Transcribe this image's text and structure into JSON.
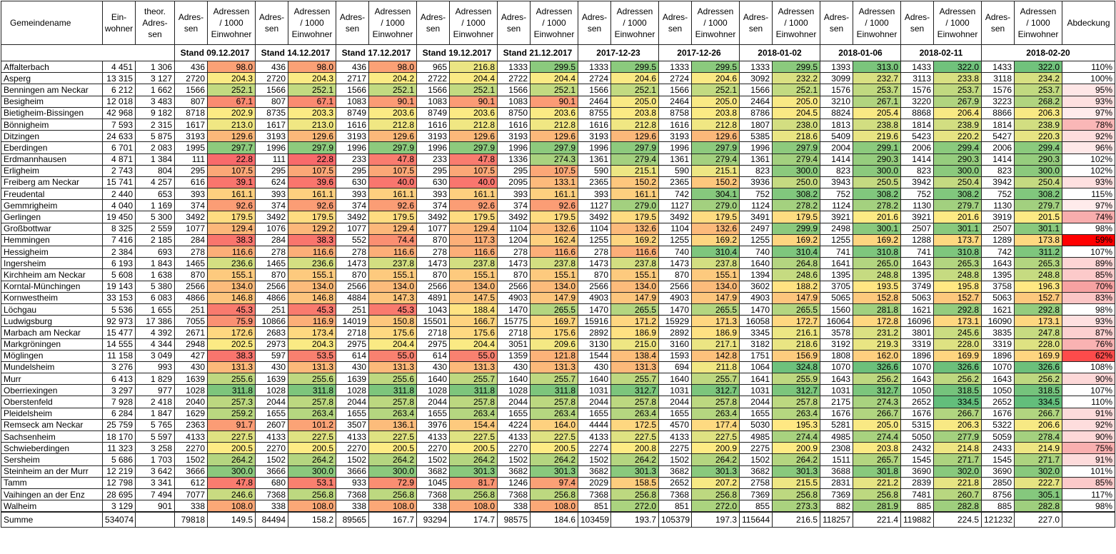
{
  "header": {
    "name": "Gemeindename",
    "einwohner": "Ein-\nwohner",
    "theor": "theor.\nAdres-\nsen",
    "adressen": "Adres-\nsen",
    "rate": "Adressen\n/ 1000\nEinwohner",
    "abdeckung": "Abdeckung"
  },
  "stands": [
    "Stand 09.12.2017",
    "Stand 14.12.2017",
    "Stand 17.12.2017",
    "Stand 19.12.2017",
    "Stand 21.12.2017",
    "2017-12-23",
    "2017-12-26",
    "2018-01-02",
    "2018-01-06",
    "2018-02-11",
    "2018-02-20"
  ],
  "rows": [
    [
      "Affalterbach",
      "4 451",
      "1 306",
      "436",
      "98.0",
      "436",
      "98.0",
      "436",
      "98.0",
      "965",
      "216.8",
      "1333",
      "299.5",
      "1333",
      "299.5",
      "1333",
      "299.5",
      "1333",
      "299.5",
      "1393",
      "313.0",
      "1433",
      "322.0",
      "1433",
      "322.0",
      "110%"
    ],
    [
      "Asperg",
      "13 315",
      "3 127",
      "2720",
      "204.3",
      "2720",
      "204.3",
      "2717",
      "204.2",
      "2722",
      "204.4",
      "2722",
      "204.4",
      "2724",
      "204.6",
      "2724",
      "204.6",
      "3092",
      "232.2",
      "3099",
      "232.7",
      "3113",
      "233.8",
      "3118",
      "234.2",
      "100%"
    ],
    [
      "Benningen am Neckar",
      "6 212",
      "1 662",
      "1566",
      "252.1",
      "1566",
      "252.1",
      "1566",
      "252.1",
      "1566",
      "252.1",
      "1566",
      "252.1",
      "1566",
      "252.1",
      "1566",
      "252.1",
      "1566",
      "252.1",
      "1576",
      "253.7",
      "1576",
      "253.7",
      "1576",
      "253.7",
      "95%"
    ],
    [
      "Besigheim",
      "12 018",
      "3 483",
      "807",
      "67.1",
      "807",
      "67.1",
      "1083",
      "90.1",
      "1083",
      "90.1",
      "1083",
      "90.1",
      "2464",
      "205.0",
      "2464",
      "205.0",
      "2464",
      "205.0",
      "3210",
      "267.1",
      "3220",
      "267.9",
      "3223",
      "268.2",
      "93%"
    ],
    [
      "Bietigheim-Bissingen",
      "42 968",
      "9 182",
      "8718",
      "202.9",
      "8735",
      "203.3",
      "8749",
      "203.6",
      "8749",
      "203.6",
      "8750",
      "203.6",
      "8755",
      "203.8",
      "8758",
      "203.8",
      "8786",
      "204.5",
      "8824",
      "205.4",
      "8868",
      "206.4",
      "8866",
      "206.3",
      "97%"
    ],
    [
      "Bönnigheim",
      "7 593",
      "2 315",
      "1617",
      "213.0",
      "1617",
      "213.0",
      "1616",
      "212.8",
      "1616",
      "212.8",
      "1616",
      "212.8",
      "1616",
      "212.8",
      "1616",
      "212.8",
      "1807",
      "238.0",
      "1813",
      "238.8",
      "1814",
      "238.9",
      "1814",
      "238.9",
      "78%"
    ],
    [
      "Ditzingen",
      "24 633",
      "5 875",
      "3193",
      "129.6",
      "3193",
      "129.6",
      "3193",
      "129.6",
      "3193",
      "129.6",
      "3193",
      "129.6",
      "3193",
      "129.6",
      "3193",
      "129.6",
      "5385",
      "218.6",
      "5409",
      "219.6",
      "5423",
      "220.2",
      "5427",
      "220.3",
      "92%"
    ],
    [
      "Eberdingen",
      "6 701",
      "2 083",
      "1995",
      "297.7",
      "1996",
      "297.9",
      "1996",
      "297.9",
      "1996",
      "297.9",
      "1996",
      "297.9",
      "1996",
      "297.9",
      "1996",
      "297.9",
      "1996",
      "297.9",
      "2004",
      "299.1",
      "2006",
      "299.4",
      "2006",
      "299.4",
      "96%"
    ],
    [
      "Erdmannhausen",
      "4 871",
      "1 384",
      "111",
      "22.8",
      "111",
      "22.8",
      "233",
      "47.8",
      "233",
      "47.8",
      "1336",
      "274.3",
      "1361",
      "279.4",
      "1361",
      "279.4",
      "1361",
      "279.4",
      "1414",
      "290.3",
      "1414",
      "290.3",
      "1414",
      "290.3",
      "102%"
    ],
    [
      "Erligheim",
      "2 743",
      "804",
      "295",
      "107.5",
      "295",
      "107.5",
      "295",
      "107.5",
      "295",
      "107.5",
      "295",
      "107.5",
      "590",
      "215.1",
      "590",
      "215.1",
      "823",
      "300.0",
      "823",
      "300.0",
      "823",
      "300.0",
      "823",
      "300.0",
      "102%"
    ],
    [
      "Freiberg am Neckar",
      "15 741",
      "4 257",
      "616",
      "39.1",
      "624",
      "39.6",
      "630",
      "40.0",
      "630",
      "40.0",
      "2095",
      "133.1",
      "2365",
      "150.2",
      "2365",
      "150.2",
      "3936",
      "250.0",
      "3943",
      "250.5",
      "3942",
      "250.4",
      "3942",
      "250.4",
      "93%"
    ],
    [
      "Freudental",
      "2 440",
      "653",
      "393",
      "161.1",
      "393",
      "161.1",
      "393",
      "161.1",
      "393",
      "161.1",
      "393",
      "161.1",
      "393",
      "161.1",
      "742",
      "304.1",
      "752",
      "308.2",
      "752",
      "308.2",
      "752",
      "308.2",
      "752",
      "308.2",
      "115%"
    ],
    [
      "Gemmrigheim",
      "4 040",
      "1 169",
      "374",
      "92.6",
      "374",
      "92.6",
      "374",
      "92.6",
      "374",
      "92.6",
      "374",
      "92.6",
      "1127",
      "279.0",
      "1127",
      "279.0",
      "1124",
      "278.2",
      "1124",
      "278.2",
      "1130",
      "279.7",
      "1130",
      "279.7",
      "97%"
    ],
    [
      "Gerlingen",
      "19 450",
      "5 300",
      "3492",
      "179.5",
      "3492",
      "179.5",
      "3492",
      "179.5",
      "3492",
      "179.5",
      "3492",
      "179.5",
      "3492",
      "179.5",
      "3492",
      "179.5",
      "3491",
      "179.5",
      "3921",
      "201.6",
      "3921",
      "201.6",
      "3919",
      "201.5",
      "74%"
    ],
    [
      "Großbottwar",
      "8 325",
      "2 559",
      "1077",
      "129.4",
      "1076",
      "129.2",
      "1077",
      "129.4",
      "1077",
      "129.4",
      "1104",
      "132.6",
      "1104",
      "132.6",
      "1104",
      "132.6",
      "2497",
      "299.9",
      "2498",
      "300.1",
      "2507",
      "301.1",
      "2507",
      "301.1",
      "98%"
    ],
    [
      "Hemmingen",
      "7 416",
      "2 185",
      "284",
      "38.3",
      "284",
      "38.3",
      "552",
      "74.4",
      "870",
      "117.3",
      "1204",
      "162.4",
      "1255",
      "169.2",
      "1255",
      "169.2",
      "1255",
      "169.2",
      "1255",
      "169.2",
      "1288",
      "173.7",
      "1289",
      "173.8",
      "59%"
    ],
    [
      "Hessigheim",
      "2 384",
      "693",
      "278",
      "116.6",
      "278",
      "116.6",
      "278",
      "116.6",
      "278",
      "116.6",
      "278",
      "116.6",
      "278",
      "116.6",
      "740",
      "310.4",
      "740",
      "310.4",
      "741",
      "310.8",
      "741",
      "310.8",
      "742",
      "311.2",
      "107%"
    ],
    [
      "Ingersheim",
      "6 193",
      "1 843",
      "1465",
      "236.6",
      "1465",
      "236.6",
      "1473",
      "237.8",
      "1473",
      "237.8",
      "1473",
      "237.8",
      "1473",
      "237.8",
      "1473",
      "237.8",
      "1640",
      "264.8",
      "1641",
      "265.0",
      "1643",
      "265.3",
      "1643",
      "265.3",
      "89%"
    ],
    [
      "Kirchheim am Neckar",
      "5 608",
      "1 638",
      "870",
      "155.1",
      "870",
      "155.1",
      "870",
      "155.1",
      "870",
      "155.1",
      "870",
      "155.1",
      "870",
      "155.1",
      "870",
      "155.1",
      "1394",
      "248.6",
      "1395",
      "248.8",
      "1395",
      "248.8",
      "1395",
      "248.8",
      "85%"
    ],
    [
      "Korntal-Münchingen",
      "19 143",
      "5 380",
      "2566",
      "134.0",
      "2566",
      "134.0",
      "2566",
      "134.0",
      "2566",
      "134.0",
      "2566",
      "134.0",
      "2566",
      "134.0",
      "2566",
      "134.0",
      "3602",
      "188.2",
      "3705",
      "193.5",
      "3749",
      "195.8",
      "3758",
      "196.3",
      "70%"
    ],
    [
      "Kornwestheim",
      "33 153",
      "6 083",
      "4866",
      "146.8",
      "4866",
      "146.8",
      "4884",
      "147.3",
      "4891",
      "147.5",
      "4903",
      "147.9",
      "4903",
      "147.9",
      "4903",
      "147.9",
      "4903",
      "147.9",
      "5065",
      "152.8",
      "5063",
      "152.7",
      "5063",
      "152.7",
      "83%"
    ],
    [
      "Löchgau",
      "5 536",
      "1 655",
      "251",
      "45.3",
      "251",
      "45.3",
      "251",
      "45.3",
      "1043",
      "188.4",
      "1470",
      "265.5",
      "1470",
      "265.5",
      "1470",
      "265.5",
      "1470",
      "265.5",
      "1560",
      "281.8",
      "1621",
      "292.8",
      "1621",
      "292.8",
      "98%"
    ],
    [
      "Ludwigsburg",
      "92 973",
      "17 386",
      "7055",
      "75.9",
      "10866",
      "116.9",
      "14019",
      "150.8",
      "15501",
      "166.7",
      "15775",
      "169.7",
      "15916",
      "171.2",
      "15929",
      "171.3",
      "16058",
      "172.7",
      "16064",
      "172.8",
      "16096",
      "173.1",
      "16090",
      "173.1",
      "93%"
    ],
    [
      "Marbach am Neckar",
      "15 477",
      "4 392",
      "2671",
      "172.6",
      "2683",
      "173.4",
      "2718",
      "175.6",
      "2718",
      "175.6",
      "2718",
      "175.6",
      "2892",
      "186.9",
      "2892",
      "186.9",
      "3345",
      "216.1",
      "3578",
      "231.2",
      "3801",
      "245.6",
      "3835",
      "247.8",
      "87%"
    ],
    [
      "Markgröningen",
      "14 555",
      "4 344",
      "2948",
      "202.5",
      "2973",
      "204.3",
      "2975",
      "204.4",
      "2975",
      "204.4",
      "3051",
      "209.6",
      "3130",
      "215.0",
      "3160",
      "217.1",
      "3182",
      "218.6",
      "3192",
      "219.3",
      "3319",
      "228.0",
      "3319",
      "228.0",
      "76%"
    ],
    [
      "Möglingen",
      "11 158",
      "3 049",
      "427",
      "38.3",
      "597",
      "53.5",
      "614",
      "55.0",
      "614",
      "55.0",
      "1359",
      "121.8",
      "1544",
      "138.4",
      "1593",
      "142.8",
      "1751",
      "156.9",
      "1808",
      "162.0",
      "1896",
      "169.9",
      "1896",
      "169.9",
      "62%"
    ],
    [
      "Mundelsheim",
      "3 276",
      "993",
      "430",
      "131.3",
      "430",
      "131.3",
      "430",
      "131.3",
      "430",
      "131.3",
      "430",
      "131.3",
      "430",
      "131.3",
      "694",
      "211.8",
      "1064",
      "324.8",
      "1070",
      "326.6",
      "1070",
      "326.6",
      "1070",
      "326.6",
      "108%"
    ],
    [
      "Murr",
      "6 413",
      "1 829",
      "1639",
      "255.6",
      "1639",
      "255.6",
      "1639",
      "255.6",
      "1640",
      "255.7",
      "1640",
      "255.7",
      "1640",
      "255.7",
      "1640",
      "255.7",
      "1641",
      "255.9",
      "1643",
      "256.2",
      "1643",
      "256.2",
      "1643",
      "256.2",
      "90%"
    ],
    [
      "Oberriexingen",
      "3 297",
      "977",
      "1028",
      "311.8",
      "1028",
      "311.8",
      "1028",
      "311.8",
      "1028",
      "311.8",
      "1028",
      "311.8",
      "1031",
      "312.7",
      "1031",
      "312.7",
      "1031",
      "312.7",
      "1031",
      "312.7",
      "1050",
      "318.5",
      "1050",
      "318.5",
      "107%"
    ],
    [
      "Oberstenfeld",
      "7 928",
      "2 418",
      "2040",
      "257.3",
      "2044",
      "257.8",
      "2044",
      "257.8",
      "2044",
      "257.8",
      "2044",
      "257.8",
      "2044",
      "257.8",
      "2044",
      "257.8",
      "2044",
      "257.8",
      "2175",
      "274.3",
      "2652",
      "334.5",
      "2652",
      "334.5",
      "110%"
    ],
    [
      "Pleidelsheim",
      "6 284",
      "1 847",
      "1629",
      "259.2",
      "1655",
      "263.4",
      "1655",
      "263.4",
      "1655",
      "263.4",
      "1655",
      "263.4",
      "1655",
      "263.4",
      "1655",
      "263.4",
      "1655",
      "263.4",
      "1676",
      "266.7",
      "1676",
      "266.7",
      "1676",
      "266.7",
      "91%"
    ],
    [
      "Remseck am Neckar",
      "25 759",
      "5 765",
      "2363",
      "91.7",
      "2607",
      "101.2",
      "3507",
      "136.1",
      "3976",
      "154.4",
      "4224",
      "164.0",
      "4444",
      "172.5",
      "4570",
      "177.4",
      "5030",
      "195.3",
      "5281",
      "205.0",
      "5315",
      "206.3",
      "5322",
      "206.6",
      "92%"
    ],
    [
      "Sachsenheim",
      "18 170",
      "5 597",
      "4133",
      "227.5",
      "4133",
      "227.5",
      "4133",
      "227.5",
      "4133",
      "227.5",
      "4133",
      "227.5",
      "4133",
      "227.5",
      "4133",
      "227.5",
      "4985",
      "274.4",
      "4985",
      "274.4",
      "5050",
      "277.9",
      "5059",
      "278.4",
      "90%"
    ],
    [
      "Schwieberdingen",
      "11 323",
      "3 258",
      "2270",
      "200.5",
      "2270",
      "200.5",
      "2270",
      "200.5",
      "2270",
      "200.5",
      "2270",
      "200.5",
      "2274",
      "200.8",
      "2275",
      "200.9",
      "2275",
      "200.9",
      "2308",
      "203.8",
      "2432",
      "214.8",
      "2433",
      "214.9",
      "75%"
    ],
    [
      "Sersheim",
      "5 686",
      "1 703",
      "1502",
      "264.2",
      "1502",
      "264.2",
      "1502",
      "264.2",
      "1502",
      "264.2",
      "1502",
      "264.2",
      "1502",
      "264.2",
      "1502",
      "264.2",
      "1502",
      "264.2",
      "1511",
      "265.7",
      "1545",
      "271.7",
      "1545",
      "271.7",
      "91%"
    ],
    [
      "Steinheim an der Murr",
      "12 219",
      "3 642",
      "3666",
      "300.0",
      "3666",
      "300.0",
      "3666",
      "300.0",
      "3682",
      "301.3",
      "3682",
      "301.3",
      "3682",
      "301.3",
      "3682",
      "301.3",
      "3682",
      "301.3",
      "3688",
      "301.8",
      "3690",
      "302.0",
      "3690",
      "302.0",
      "101%"
    ],
    [
      "Tamm",
      "12 798",
      "3 341",
      "612",
      "47.8",
      "680",
      "53.1",
      "933",
      "72.9",
      "1045",
      "81.7",
      "1246",
      "97.4",
      "2029",
      "158.5",
      "2652",
      "207.2",
      "2758",
      "215.5",
      "2831",
      "221.2",
      "2839",
      "221.8",
      "2850",
      "222.7",
      "85%"
    ],
    [
      "Vaihingen an der Enz",
      "28 695",
      "7 494",
      "7077",
      "246.6",
      "7368",
      "256.8",
      "7368",
      "256.8",
      "7368",
      "256.8",
      "7368",
      "256.8",
      "7368",
      "256.8",
      "7368",
      "256.8",
      "7369",
      "256.8",
      "7369",
      "256.8",
      "7481",
      "260.7",
      "8756",
      "305.1",
      "117%"
    ],
    [
      "Walheim",
      "3 129",
      "901",
      "338",
      "108.0",
      "338",
      "108.0",
      "338",
      "108.0",
      "338",
      "108.0",
      "338",
      "108.0",
      "851",
      "272.0",
      "851",
      "272.0",
      "855",
      "273.3",
      "882",
      "281.9",
      "885",
      "282.8",
      "885",
      "282.8",
      "98%"
    ]
  ],
  "summe": [
    "Summe",
    "534074",
    null,
    "79818",
    "149.5",
    "84494",
    "158.2",
    "89565",
    "167.7",
    "93294",
    "174.7",
    "98575",
    "184.6",
    "103459",
    "193.7",
    "105379",
    "197.3",
    "115644",
    "216.5",
    "118257",
    "221.4",
    "119882",
    "224.5",
    "121232",
    "227.0",
    null
  ]
}
